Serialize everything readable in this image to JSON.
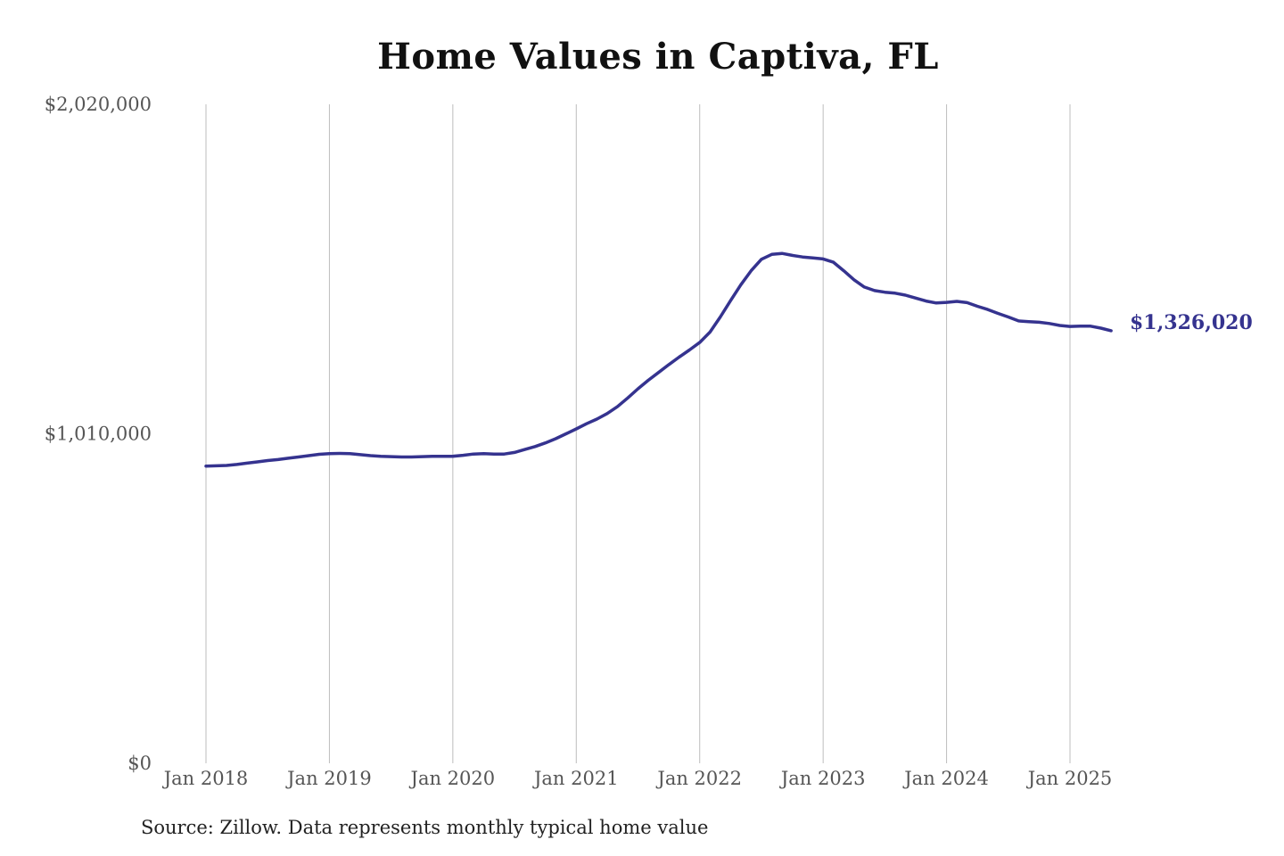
{
  "chart_data": {
    "type": "line",
    "title": "Home Values in Captiva, FL",
    "xlabel": "",
    "ylabel": "",
    "ylim": [
      0,
      2020000
    ],
    "y_ticks": [
      {
        "value": 0,
        "label": "$0"
      },
      {
        "value": 1010000,
        "label": "$1,010,000"
      },
      {
        "value": 2020000,
        "label": "$2,020,000"
      }
    ],
    "x_ticks": [
      {
        "date": "2018-01",
        "label": "Jan 2018"
      },
      {
        "date": "2019-01",
        "label": "Jan 2019"
      },
      {
        "date": "2020-01",
        "label": "Jan 2020"
      },
      {
        "date": "2021-01",
        "label": "Jan 2021"
      },
      {
        "date": "2022-01",
        "label": "Jan 2022"
      },
      {
        "date": "2023-01",
        "label": "Jan 2023"
      },
      {
        "date": "2024-01",
        "label": "Jan 2024"
      },
      {
        "date": "2025-01",
        "label": "Jan 2025"
      }
    ],
    "grid": "vertical",
    "line_color": "#35338f",
    "end_label": "$1,326,020",
    "series": [
      {
        "x": [
          "2018-01",
          "2018-02",
          "2018-03",
          "2018-04",
          "2018-05",
          "2018-06",
          "2018-07",
          "2018-08",
          "2018-09",
          "2018-10",
          "2018-11",
          "2018-12",
          "2019-01",
          "2019-02",
          "2019-03",
          "2019-04",
          "2019-05",
          "2019-06",
          "2019-07",
          "2019-08",
          "2019-09",
          "2019-10",
          "2019-11",
          "2019-12",
          "2020-01",
          "2020-02",
          "2020-03",
          "2020-04",
          "2020-05",
          "2020-06",
          "2020-07",
          "2020-08",
          "2020-09",
          "2020-10",
          "2020-11",
          "2020-12",
          "2021-01",
          "2021-02",
          "2021-03",
          "2021-04",
          "2021-05",
          "2021-06",
          "2021-07",
          "2021-08",
          "2021-09",
          "2021-10",
          "2021-11",
          "2021-12",
          "2022-01",
          "2022-02",
          "2022-03",
          "2022-04",
          "2022-05",
          "2022-06",
          "2022-07",
          "2022-08",
          "2022-09",
          "2022-10",
          "2022-11",
          "2022-12",
          "2023-01",
          "2023-02",
          "2023-03",
          "2023-04",
          "2023-05",
          "2023-06",
          "2023-07",
          "2023-08",
          "2023-09",
          "2023-10",
          "2023-11",
          "2023-12",
          "2024-01",
          "2024-02",
          "2024-03",
          "2024-04",
          "2024-05",
          "2024-06",
          "2024-07",
          "2024-08",
          "2024-09",
          "2024-10",
          "2024-11",
          "2024-12",
          "2025-01",
          "2025-02",
          "2025-03",
          "2025-04",
          "2025-05"
        ],
        "values": [
          911000,
          912000,
          913000,
          916000,
          920000,
          924000,
          928000,
          931000,
          935000,
          939000,
          943000,
          947000,
          949000,
          950000,
          949000,
          946000,
          943000,
          941000,
          940000,
          939000,
          939000,
          940000,
          941000,
          941000,
          941000,
          944000,
          948000,
          949000,
          948000,
          948000,
          953000,
          962000,
          971000,
          982000,
          995000,
          1010000,
          1025000,
          1041000,
          1055000,
          1072000,
          1093000,
          1120000,
          1148000,
          1174000,
          1198000,
          1222000,
          1245000,
          1267000,
          1290000,
          1322000,
          1368000,
          1418000,
          1467000,
          1510000,
          1545000,
          1560000,
          1563000,
          1557000,
          1552000,
          1549000,
          1546000,
          1536000,
          1510000,
          1482000,
          1460000,
          1449000,
          1444000,
          1441000,
          1435000,
          1426000,
          1417000,
          1411000,
          1413000,
          1416000,
          1412000,
          1401000,
          1391000,
          1379000,
          1368000,
          1356000,
          1354000,
          1352000,
          1348000,
          1342000,
          1339000,
          1340000,
          1340000,
          1334000,
          1326020
        ]
      }
    ]
  },
  "source_note": "Source: Zillow. Data represents monthly typical home value"
}
